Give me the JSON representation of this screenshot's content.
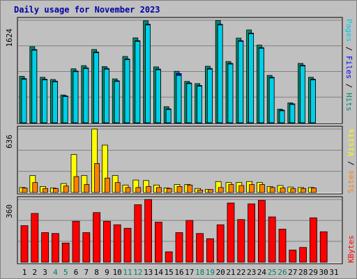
{
  "title": "Daily usage for November 2023",
  "colors": {
    "pages": "#00cfe8",
    "files": "#0000ff",
    "hits": "#008a6a",
    "sites": "#ff8000",
    "visits": "#ffff00",
    "kbytes": "#ff0000",
    "weekend_label": "#008060",
    "weekday_label": "#000000",
    "title": "#0000a0",
    "panel": "#c0c0c0",
    "gridline": "#808080"
  },
  "chart_data": [
    {
      "type": "bar",
      "panel": "hits-files-pages",
      "ymax_label": "1624",
      "ylim": [
        0,
        1624
      ],
      "legend_labels": [
        "Pages",
        "Files",
        "Hits"
      ],
      "categories": [
        "1",
        "2",
        "3",
        "4",
        "5",
        "6",
        "7",
        "8",
        "9",
        "10",
        "11",
        "12",
        "13",
        "14",
        "15",
        "16",
        "17",
        "18",
        "19",
        "20",
        "21",
        "22",
        "23",
        "24",
        "25",
        "26",
        "27",
        "28",
        "29",
        "30",
        "31"
      ],
      "series": [
        {
          "name": "Hits",
          "values": [
            735,
            1205,
            720,
            685,
            440,
            855,
            905,
            1160,
            890,
            695,
            1050,
            1345,
            1615,
            885,
            255,
            815,
            655,
            620,
            895,
            1620,
            970,
            1340,
            1470,
            1230,
            750,
            215,
            315,
            940,
            720,
            0,
            0
          ]
        },
        {
          "name": "Files",
          "values": [
            700,
            1160,
            690,
            660,
            425,
            820,
            870,
            1120,
            860,
            665,
            1010,
            1300,
            1560,
            850,
            220,
            780,
            630,
            590,
            860,
            1560,
            940,
            1300,
            1420,
            1190,
            720,
            200,
            300,
            910,
            690,
            0,
            0
          ]
        },
        {
          "name": "Pages",
          "values": [
            700,
            1160,
            690,
            660,
            425,
            820,
            870,
            1120,
            860,
            665,
            1010,
            1300,
            1560,
            850,
            220,
            760,
            630,
            590,
            860,
            1560,
            940,
            1300,
            1420,
            1190,
            720,
            200,
            300,
            910,
            690,
            0,
            0
          ]
        }
      ]
    },
    {
      "type": "bar",
      "panel": "visits-sites",
      "ymax_label": "636",
      "ylim": [
        0,
        636
      ],
      "legend_labels": [
        "Sites",
        "Visits"
      ],
      "categories": [
        "1",
        "2",
        "3",
        "4",
        "5",
        "6",
        "7",
        "8",
        "9",
        "10",
        "11",
        "12",
        "13",
        "14",
        "15",
        "16",
        "17",
        "18",
        "19",
        "20",
        "21",
        "22",
        "23",
        "24",
        "25",
        "26",
        "27",
        "28",
        "29",
        "30",
        "31"
      ],
      "series": [
        {
          "name": "Visits",
          "values": [
            50,
            170,
            60,
            45,
            90,
            380,
            170,
            636,
            475,
            170,
            75,
            125,
            120,
            75,
            45,
            80,
            80,
            40,
            30,
            110,
            100,
            100,
            110,
            100,
            60,
            70,
            55,
            50,
            50,
            0,
            0
          ]
        },
        {
          "name": "Sites",
          "values": [
            45,
            100,
            40,
            40,
            65,
            160,
            80,
            290,
            145,
            100,
            50,
            50,
            60,
            50,
            40,
            60,
            75,
            25,
            30,
            50,
            80,
            70,
            80,
            80,
            50,
            45,
            40,
            40,
            45,
            0,
            0
          ]
        }
      ]
    },
    {
      "type": "bar",
      "panel": "kbytes",
      "ymax_label": "360",
      "ylim": [
        0,
        360
      ],
      "legend_labels": [
        "KBytes"
      ],
      "categories": [
        "1",
        "2",
        "3",
        "4",
        "5",
        "6",
        "7",
        "8",
        "9",
        "10",
        "11",
        "12",
        "13",
        "14",
        "15",
        "16",
        "17",
        "18",
        "19",
        "20",
        "21",
        "22",
        "23",
        "24",
        "25",
        "26",
        "27",
        "28",
        "29",
        "30",
        "31"
      ],
      "series": [
        {
          "name": "KBytes",
          "values": [
            210,
            280,
            170,
            165,
            110,
            235,
            170,
            285,
            235,
            215,
            195,
            330,
            360,
            230,
            60,
            170,
            240,
            165,
            135,
            215,
            340,
            245,
            335,
            355,
            260,
            190,
            70,
            85,
            255,
            175,
            0
          ]
        }
      ]
    }
  ],
  "x_labels": [
    {
      "text": "1",
      "weekend": false
    },
    {
      "text": "2",
      "weekend": false
    },
    {
      "text": "3",
      "weekend": false
    },
    {
      "text": "4",
      "weekend": true
    },
    {
      "text": "5",
      "weekend": true
    },
    {
      "text": "6",
      "weekend": false
    },
    {
      "text": "7",
      "weekend": false
    },
    {
      "text": "8",
      "weekend": false
    },
    {
      "text": "9",
      "weekend": false
    },
    {
      "text": "10",
      "weekend": false
    },
    {
      "text": "11",
      "weekend": true
    },
    {
      "text": "12",
      "weekend": true
    },
    {
      "text": "13",
      "weekend": false
    },
    {
      "text": "14",
      "weekend": false
    },
    {
      "text": "15",
      "weekend": false
    },
    {
      "text": "16",
      "weekend": false
    },
    {
      "text": "17",
      "weekend": false
    },
    {
      "text": "18",
      "weekend": true
    },
    {
      "text": "19",
      "weekend": true
    },
    {
      "text": "20",
      "weekend": false
    },
    {
      "text": "21",
      "weekend": false
    },
    {
      "text": "22",
      "weekend": false
    },
    {
      "text": "23",
      "weekend": false
    },
    {
      "text": "24",
      "weekend": false
    },
    {
      "text": "25",
      "weekend": true
    },
    {
      "text": "26",
      "weekend": true
    },
    {
      "text": "27",
      "weekend": false
    },
    {
      "text": "28",
      "weekend": false
    },
    {
      "text": "29",
      "weekend": false
    },
    {
      "text": "30",
      "weekend": false
    },
    {
      "text": "31",
      "weekend": false
    }
  ]
}
